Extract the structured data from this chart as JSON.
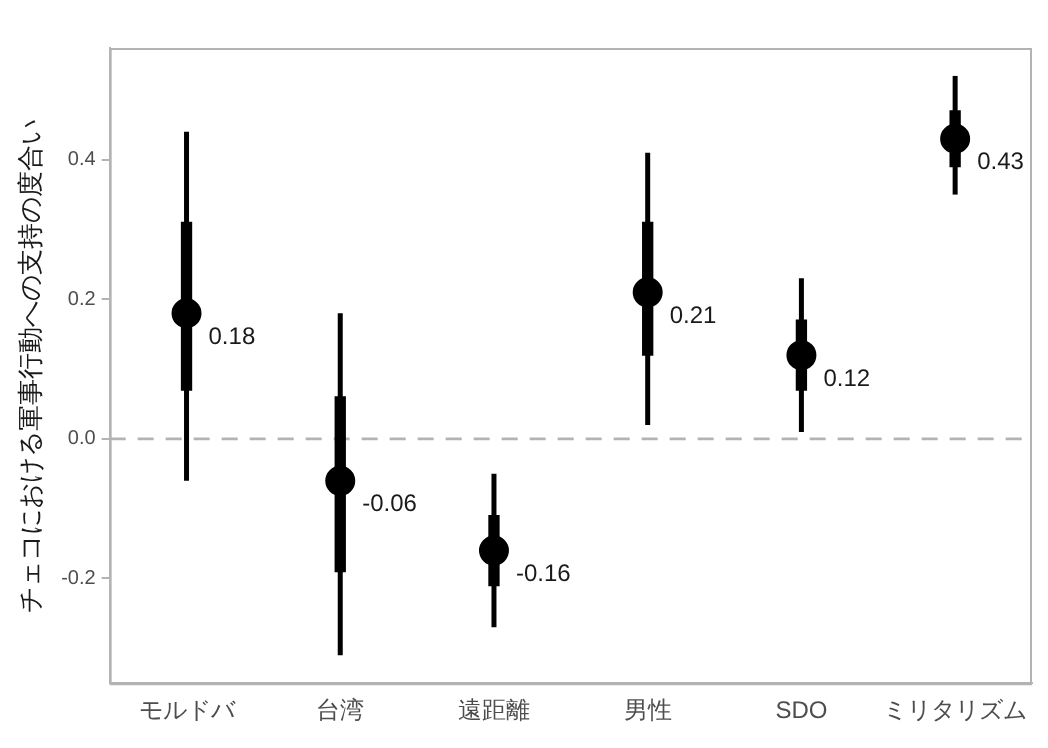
{
  "chart_data": {
    "type": "scatter",
    "ylabel": "チェコにおける軍事行動への支持の度合い",
    "categories": [
      "モルドバ",
      "台湾",
      "遠距離",
      "男性",
      "SDO",
      "ミリタリズム"
    ],
    "series": [
      {
        "type": "bar",
        "color": "#000000",
        "base": [
          0.07,
          -0.19,
          -0.21,
          0.12,
          0.07,
          0.39
        ],
        "values": [
          0.24,
          0.25,
          0.1,
          0.19,
          0.1,
          0.08
        ]
      },
      {
        "color": "#000000",
        "values": [
          0.18,
          -0.06,
          -0.16,
          0.21,
          0.12,
          0.43
        ],
        "errors": [
          [
            -0.06,
            0.44
          ],
          [
            -0.31,
            0.18
          ],
          [
            -0.27,
            -0.05
          ],
          [
            0.02,
            0.41
          ],
          [
            0.01,
            0.23
          ],
          [
            0.35,
            0.52
          ]
        ],
        "value_labels": [
          "0.18",
          "-0.06",
          "-0.16",
          "0.21",
          "0.12",
          "0.43"
        ]
      }
    ],
    "ylim": [
      -0.35,
      0.56
    ],
    "yticks": [
      -0.2,
      {
        "value": 0,
        "label": "0.0"
      },
      0.2,
      0.4
    ],
    "ref_lines": [
      {
        "axis": "y",
        "value": 0,
        "color": "#b3b3b3",
        "line_style": "dashed"
      }
    ],
    "grid": false,
    "marker": "circle"
  }
}
